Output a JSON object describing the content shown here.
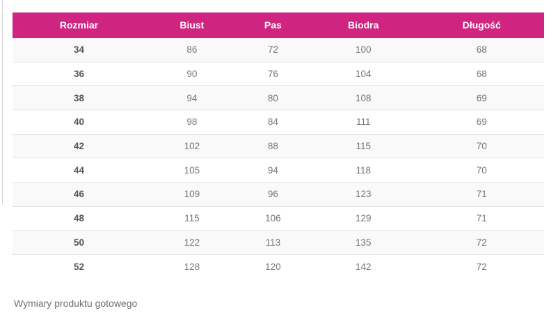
{
  "colors": {
    "header_bg": "#cf2480",
    "header_text": "#ffffff",
    "row_alt_bg": "#f9f9f9",
    "row_border": "#e2e2e2",
    "size_text": "#555555",
    "value_text": "#757575",
    "caption_text": "#6e6e6e"
  },
  "table": {
    "columns": [
      {
        "label": "Rozmiar"
      },
      {
        "label": "Biust"
      },
      {
        "label": "Pas"
      },
      {
        "label": "Biodra"
      },
      {
        "label": "Długość"
      }
    ],
    "rows": [
      [
        "34",
        "86",
        "72",
        "100",
        "68"
      ],
      [
        "36",
        "90",
        "76",
        "104",
        "68"
      ],
      [
        "38",
        "94",
        "80",
        "108",
        "69"
      ],
      [
        "40",
        "98",
        "84",
        "111",
        "69"
      ],
      [
        "42",
        "102",
        "88",
        "115",
        "70"
      ],
      [
        "44",
        "105",
        "94",
        "118",
        "70"
      ],
      [
        "46",
        "109",
        "96",
        "123",
        "71"
      ],
      [
        "48",
        "115",
        "106",
        "129",
        "71"
      ],
      [
        "50",
        "122",
        "113",
        "135",
        "72"
      ],
      [
        "52",
        "128",
        "120",
        "142",
        "72"
      ]
    ]
  },
  "caption": "Wymiary produktu gotowego"
}
